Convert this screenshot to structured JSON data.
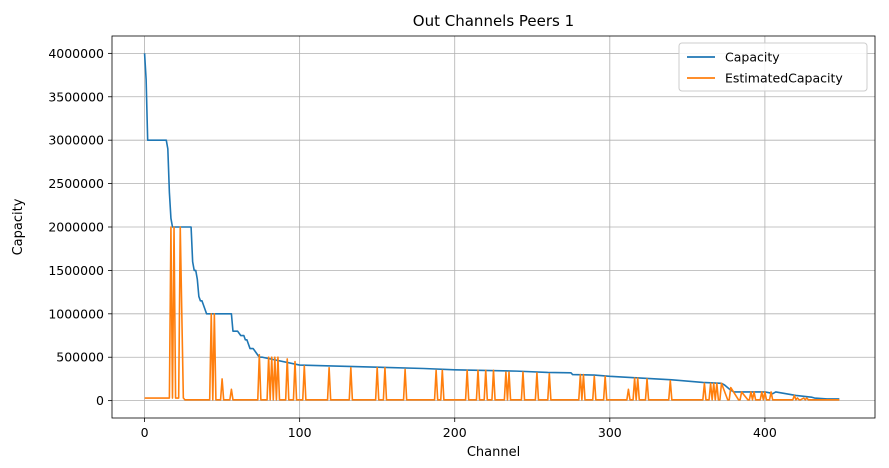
{
  "chart_data": {
    "type": "line",
    "title": "Out Channels Peers 1",
    "xlabel": "Channel",
    "ylabel": "Capacity",
    "xlim": [
      -21,
      471
    ],
    "ylim": [
      -200000,
      4200000
    ],
    "xticks": [
      0,
      100,
      200,
      300,
      400
    ],
    "yticks": [
      0,
      500000,
      1000000,
      1500000,
      2000000,
      2500000,
      3000000,
      3500000,
      4000000
    ],
    "grid": true,
    "legend_position": "top-right",
    "series": [
      {
        "name": "Capacity",
        "color": "#1f77b4",
        "x": [
          0,
          1,
          2,
          14,
          15,
          16,
          17,
          18,
          30,
          31,
          32,
          33,
          34,
          35,
          36,
          37,
          38,
          39,
          40,
          41,
          42,
          56,
          57,
          59,
          60,
          62,
          64,
          65,
          66,
          68,
          70,
          72,
          74,
          76,
          100,
          120,
          150,
          180,
          200,
          240,
          260,
          275,
          276,
          290,
          300,
          320,
          340,
          360,
          372,
          374,
          376,
          378,
          380,
          400,
          403,
          405,
          407,
          420,
          430,
          432,
          440,
          448
        ],
        "values": [
          4000000,
          3700000,
          3000000,
          3000000,
          2900000,
          2400000,
          2100000,
          2000000,
          2000000,
          1600000,
          1500000,
          1500000,
          1400000,
          1200000,
          1150000,
          1150000,
          1100000,
          1050000,
          1000000,
          1000000,
          1000000,
          1000000,
          800000,
          800000,
          800000,
          750000,
          750000,
          700000,
          700000,
          600000,
          600000,
          550000,
          500000,
          500000,
          410000,
          400000,
          385000,
          370000,
          355000,
          340000,
          325000,
          320000,
          300000,
          295000,
          280000,
          260000,
          240000,
          210000,
          200000,
          180000,
          150000,
          120000,
          100000,
          100000,
          90000,
          80000,
          100000,
          60000,
          40000,
          30000,
          20000,
          20000
        ]
      },
      {
        "name": "EstimatedCapacity",
        "color": "#ff7f0e",
        "x": [
          0,
          16,
          17,
          18,
          19,
          20,
          22,
          23,
          25,
          26,
          27,
          42,
          43,
          44,
          45,
          46,
          49,
          50,
          51,
          55,
          56,
          57,
          73,
          74,
          75,
          79,
          80,
          81,
          82,
          83,
          84,
          85,
          86,
          87,
          91,
          92,
          93,
          96,
          97,
          98,
          102,
          103,
          104,
          118,
          119,
          120,
          132,
          133,
          134,
          149,
          150,
          151,
          154,
          155,
          156,
          167,
          168,
          169,
          187,
          188,
          189,
          191,
          192,
          193,
          207,
          208,
          209,
          214,
          215,
          216,
          219,
          220,
          221,
          224,
          225,
          226,
          232,
          233,
          234,
          235,
          236,
          243,
          244,
          245,
          252,
          253,
          254,
          260,
          261,
          262,
          280,
          281,
          282,
          283,
          284,
          285,
          289,
          290,
          291,
          296,
          297,
          298,
          311,
          312,
          313,
          315,
          316,
          317,
          318,
          319,
          320,
          323,
          324,
          325,
          338,
          339,
          340,
          360,
          361,
          362,
          364,
          365,
          366,
          367,
          368,
          369,
          370,
          371,
          372,
          376,
          377,
          378,
          383,
          384,
          385,
          389,
          390,
          391,
          392,
          393,
          394,
          396,
          397,
          398,
          399,
          400,
          401,
          403,
          404,
          405,
          418,
          419,
          420,
          421,
          422,
          423,
          425,
          426,
          427,
          428,
          448
        ],
        "values": [
          30000,
          30000,
          2000000,
          30000,
          2000000,
          30000,
          30000,
          2000000,
          30000,
          10000,
          10000,
          10000,
          1000000,
          10000,
          1000000,
          10000,
          10000,
          250000,
          10000,
          10000,
          130000,
          10000,
          10000,
          530000,
          10000,
          10000,
          500000,
          10000,
          500000,
          10000,
          500000,
          10000,
          500000,
          10000,
          10000,
          480000,
          10000,
          10000,
          450000,
          10000,
          10000,
          400000,
          10000,
          10000,
          380000,
          10000,
          10000,
          380000,
          10000,
          10000,
          380000,
          10000,
          10000,
          380000,
          10000,
          10000,
          360000,
          10000,
          10000,
          350000,
          10000,
          10000,
          350000,
          10000,
          10000,
          350000,
          10000,
          10000,
          350000,
          10000,
          10000,
          350000,
          10000,
          10000,
          350000,
          10000,
          10000,
          330000,
          10000,
          330000,
          10000,
          10000,
          330000,
          10000,
          10000,
          320000,
          10000,
          10000,
          310000,
          10000,
          10000,
          300000,
          10000,
          300000,
          10000,
          10000,
          10000,
          280000,
          10000,
          10000,
          280000,
          10000,
          10000,
          130000,
          10000,
          10000,
          260000,
          10000,
          260000,
          10000,
          10000,
          10000,
          250000,
          10000,
          10000,
          230000,
          10000,
          10000,
          200000,
          10000,
          10000,
          200000,
          10000,
          200000,
          10000,
          200000,
          10000,
          10000,
          200000,
          10000,
          10000,
          150000,
          10000,
          10000,
          100000,
          10000,
          10000,
          100000,
          10000,
          100000,
          10000,
          10000,
          10000,
          100000,
          10000,
          100000,
          10000,
          10000,
          100000,
          10000,
          10000,
          60000,
          10000,
          30000,
          10000,
          10000,
          30000,
          10000,
          30000,
          10000,
          10000
        ]
      }
    ]
  }
}
